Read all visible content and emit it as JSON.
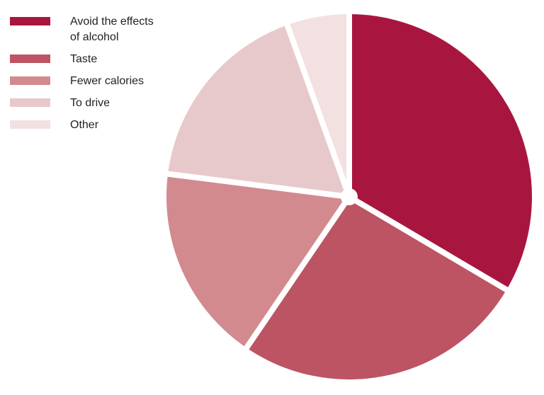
{
  "chart_data": {
    "type": "pie",
    "title": "",
    "legend_position": "top-left",
    "categories": [
      "Avoid the effects of alcohol",
      "Taste",
      "Fewer calories",
      "To drive",
      "Other"
    ],
    "values": [
      33.5,
      26,
      17.5,
      17.5,
      5.5
    ],
    "colors": [
      "#A8163F",
      "#BC5463",
      "#D28A8F",
      "#E8C9CB",
      "#F3E0E1"
    ]
  }
}
